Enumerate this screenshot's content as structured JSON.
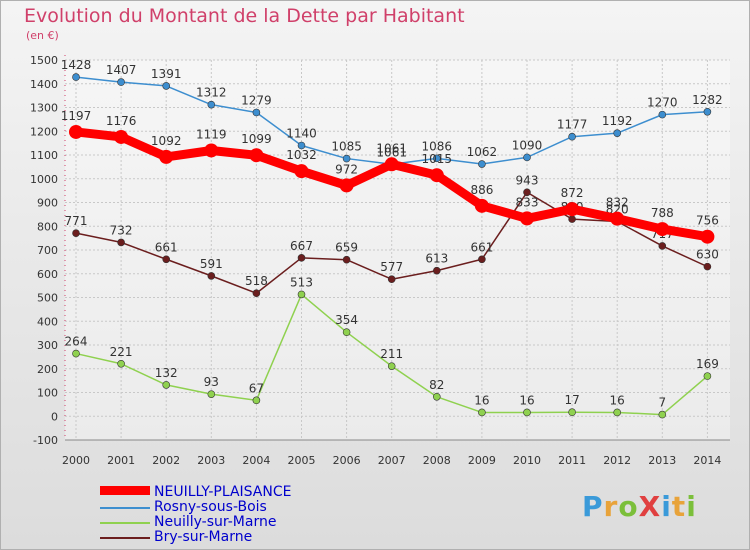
{
  "title": "Evolution du Montant de la Dette par Habitant",
  "subtitle": "(en €)",
  "logo": "ProXiti",
  "chart_data": {
    "type": "line",
    "title": "Evolution du Montant de la Dette par Habitant",
    "subtitle": "(en €)",
    "x": [
      2000,
      2001,
      2002,
      2003,
      2004,
      2005,
      2006,
      2007,
      2008,
      2009,
      2010,
      2011,
      2012,
      2013,
      2014
    ],
    "ylim": [
      -100,
      1500
    ],
    "yticks": [
      -100,
      0,
      100,
      200,
      300,
      400,
      500,
      600,
      700,
      800,
      900,
      1000,
      1100,
      1200,
      1300,
      1400,
      1500
    ],
    "grid": true,
    "legend_position": "bottom-left",
    "series": [
      {
        "name": "NEUILLY-PLAISANCE",
        "color": "#ff0000",
        "values": [
          1197,
          1176,
          1092,
          1119,
          1099,
          1032,
          972,
          1061,
          1015,
          886,
          833,
          872,
          832,
          788,
          756
        ]
      },
      {
        "name": "Rosny-sous-Bois",
        "color": "#3d8ecf",
        "values": [
          1428,
          1407,
          1391,
          1312,
          1279,
          1140,
          1085,
          1061,
          1086,
          1062,
          1090,
          1177,
          1192,
          1270,
          1282
        ]
      },
      {
        "name": "Neuilly-sur-Marne",
        "color": "#8fd14f",
        "values": [
          264,
          221,
          132,
          93,
          67,
          513,
          354,
          211,
          82,
          16,
          16,
          17,
          16,
          7,
          169
        ]
      },
      {
        "name": "Bry-sur-Marne",
        "color": "#6b1e1e",
        "values": [
          771,
          732,
          661,
          591,
          518,
          667,
          659,
          577,
          613,
          661,
          943,
          830,
          820,
          717,
          630
        ]
      }
    ]
  }
}
